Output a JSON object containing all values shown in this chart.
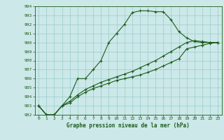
{
  "line1": [
    983,
    982,
    982,
    983,
    984,
    986,
    986,
    987,
    988,
    990,
    991,
    992,
    993.3,
    993.5,
    993.5,
    993.4,
    993.4,
    992.5,
    991.2,
    990.5,
    990.1,
    990.0,
    990.0,
    990.0
  ],
  "line2": [
    983,
    982,
    982,
    983,
    983.5,
    984.2,
    984.8,
    985.2,
    985.6,
    985.9,
    986.2,
    986.5,
    986.8,
    987.2,
    987.6,
    988.0,
    988.5,
    989.0,
    989.5,
    990.0,
    990.2,
    990.1,
    990.0,
    990.0
  ],
  "line3": [
    983,
    982,
    982,
    983,
    983.3,
    984.0,
    984.5,
    984.9,
    985.2,
    985.5,
    985.8,
    986.0,
    986.2,
    986.4,
    986.7,
    987.0,
    987.4,
    987.8,
    988.2,
    989.3,
    989.5,
    989.7,
    989.9,
    990.0
  ],
  "x": [
    0,
    1,
    2,
    3,
    4,
    5,
    6,
    7,
    8,
    9,
    10,
    11,
    12,
    13,
    14,
    15,
    16,
    17,
    18,
    19,
    20,
    21,
    22,
    23
  ],
  "xlim": [
    -0.5,
    23.5
  ],
  "ylim": [
    982,
    994
  ],
  "yticks": [
    982,
    983,
    984,
    985,
    986,
    987,
    988,
    989,
    990,
    991,
    992,
    993,
    994
  ],
  "xticks": [
    0,
    1,
    2,
    3,
    4,
    5,
    6,
    7,
    8,
    9,
    10,
    11,
    12,
    13,
    14,
    15,
    16,
    17,
    18,
    19,
    20,
    21,
    22,
    23
  ],
  "line_color": "#1a5c1a",
  "bg_color": "#cce8e8",
  "grid_color": "#99cccc",
  "xlabel": "Graphe pression niveau de la mer (hPa)"
}
